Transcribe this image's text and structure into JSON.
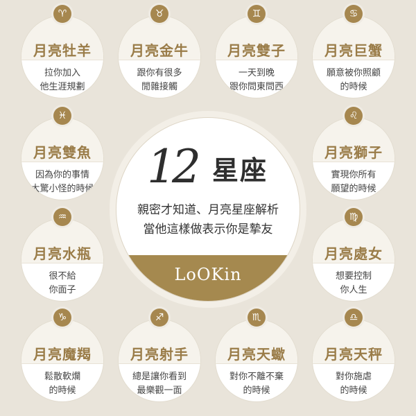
{
  "center": {
    "title_number": "12",
    "title_word": "星座",
    "subtitle_line1": "親密才知道、月亮星座解析",
    "subtitle_line2": "當他這樣做表示你是摯友",
    "brand": "LoOKin"
  },
  "signs": [
    {
      "name": "月亮牡羊",
      "line1": "拉你加入",
      "line2": "他生涯規劃",
      "symbol": "♈",
      "icon": "aries-icon"
    },
    {
      "name": "月亮金牛",
      "line1": "跟你有很多",
      "line2": "閒雜接觸",
      "symbol": "♉",
      "icon": "taurus-icon"
    },
    {
      "name": "月亮雙子",
      "line1": "一天到晚",
      "line2": "跟你問東問西",
      "symbol": "♊",
      "icon": "gemini-icon"
    },
    {
      "name": "月亮巨蟹",
      "line1": "願意被你照顧",
      "line2": "的時候",
      "symbol": "♋",
      "icon": "cancer-icon"
    },
    {
      "name": "月亮雙魚",
      "line1": "因為你的事情",
      "line2": "大驚小怪的時候",
      "symbol": "♓",
      "icon": "pisces-icon"
    },
    {
      "name": "月亮獅子",
      "line1": "實現你所有",
      "line2": "願望的時候",
      "symbol": "♌",
      "icon": "leo-icon"
    },
    {
      "name": "月亮水瓶",
      "line1": "很不給",
      "line2": "你面子",
      "symbol": "♒",
      "icon": "aquarius-icon"
    },
    {
      "name": "月亮處女",
      "line1": "想要控制",
      "line2": "你人生",
      "symbol": "♍",
      "icon": "virgo-icon"
    },
    {
      "name": "月亮魔羯",
      "line1": "鬆散軟爛",
      "line2": "的時候",
      "symbol": "♑",
      "icon": "capricorn-icon"
    },
    {
      "name": "月亮射手",
      "line1": "總是讓你看到",
      "line2": "最樂觀一面",
      "symbol": "♐",
      "icon": "sagittarius-icon"
    },
    {
      "name": "月亮天蠍",
      "line1": "對你不離不棄",
      "line2": "的時候",
      "symbol": "♏",
      "icon": "scorpio-icon"
    },
    {
      "name": "月亮天秤",
      "line1": "對你施虐",
      "line2": "的時候",
      "symbol": "♎",
      "icon": "libra-icon"
    }
  ]
}
